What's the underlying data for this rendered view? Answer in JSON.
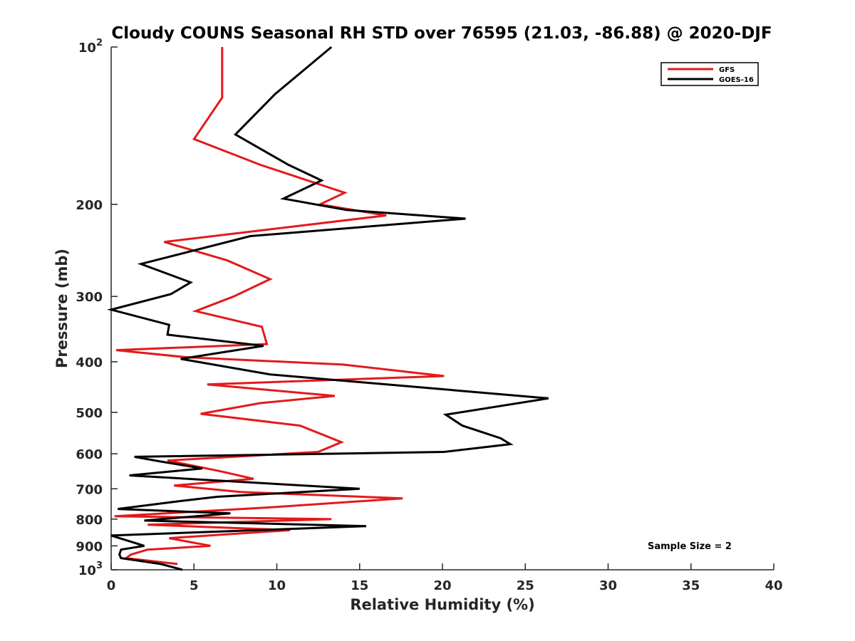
{
  "chart_data": {
    "type": "line",
    "title": "Cloudy COUNS Seasonal RH STD over 76595 (21.03, -86.88) @ 2020-DJF",
    "xlabel": "Relative Humidity (%)",
    "ylabel": "Pressure (mb)",
    "xlim": [
      0,
      40
    ],
    "ylim": [
      100,
      1000
    ],
    "yscale": "log",
    "y_reversed": true,
    "x_ticks": [
      0,
      5,
      10,
      15,
      20,
      25,
      30,
      35,
      40
    ],
    "x_tick_labels": [
      "0",
      "5",
      "10",
      "15",
      "20",
      "25",
      "30",
      "35",
      "40"
    ],
    "y_ticks": [
      100,
      200,
      300,
      400,
      500,
      600,
      700,
      800,
      900,
      1000
    ],
    "y_tick_labels": [
      {
        "base": "10",
        "exp": "2"
      },
      {
        "base": "200",
        "exp": ""
      },
      {
        "base": "300",
        "exp": ""
      },
      {
        "base": "400",
        "exp": ""
      },
      {
        "base": "500",
        "exp": ""
      },
      {
        "base": "600",
        "exp": ""
      },
      {
        "base": "700",
        "exp": ""
      },
      {
        "base": "800",
        "exp": ""
      },
      {
        "base": "900",
        "exp": ""
      },
      {
        "base": "10",
        "exp": "3"
      }
    ],
    "legend_position": "top-right",
    "annotation": "Sample Size = 2",
    "series": [
      {
        "name": "GFS",
        "color": "#e31a1c",
        "x": [
          6.7,
          6.7,
          5.0,
          9.0,
          14.1,
          12.6,
          16.6,
          3.2,
          7.0,
          9.6,
          7.4,
          5.1,
          9.1,
          9.4,
          0.3,
          4.5,
          14.0,
          20.1,
          5.8,
          13.5,
          9.0,
          5.4,
          11.4,
          13.9,
          12.5,
          3.4,
          6.6,
          8.6,
          3.8,
          7.8,
          17.6,
          9.5,
          0.2,
          13.3,
          2.2,
          10.8,
          3.5,
          6.0,
          2.2,
          1.2,
          0.9,
          4.0
        ],
        "y": [
          100,
          125,
          150,
          168,
          190,
          200,
          210,
          236,
          256,
          278,
          300,
          320,
          343,
          370,
          380,
          392,
          405,
          426,
          442,
          465,
          480,
          503,
          530,
          570,
          595,
          618,
          648,
          670,
          690,
          710,
          730,
          760,
          790,
          800,
          820,
          840,
          870,
          900,
          915,
          935,
          950,
          975
        ]
      },
      {
        "name": "GOES-16",
        "color": "#000000",
        "x": [
          13.3,
          9.9,
          7.5,
          10.7,
          12.7,
          10.4,
          14.2,
          21.4,
          8.4,
          1.8,
          4.8,
          3.6,
          0.0,
          3.5,
          3.4,
          9.2,
          4.2,
          9.6,
          26.4,
          20.2,
          21.2,
          23.5,
          24.1,
          20.1,
          1.4,
          2.9,
          5.5,
          1.1,
          15.0,
          6.4,
          4.0,
          0.4,
          7.2,
          2.0,
          15.4,
          0.0,
          2.0,
          0.6,
          0.5,
          0.6,
          3.0,
          4.3
        ],
        "y": [
          100,
          123,
          147,
          168,
          180,
          195,
          205,
          213,
          230,
          260,
          282,
          297,
          318,
          340,
          355,
          373,
          395,
          423,
          470,
          505,
          530,
          560,
          575,
          595,
          608,
          620,
          640,
          660,
          700,
          725,
          740,
          765,
          780,
          805,
          825,
          860,
          900,
          915,
          935,
          950,
          975,
          1000
        ]
      }
    ]
  }
}
